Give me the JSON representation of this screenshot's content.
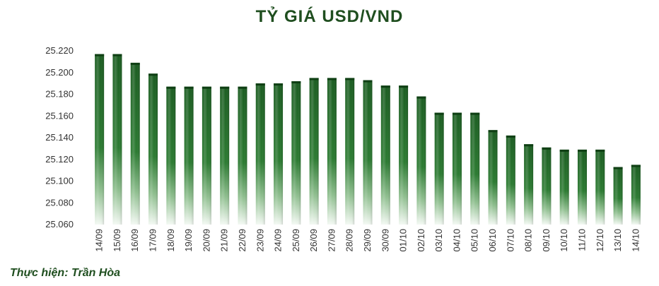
{
  "chart_data": {
    "type": "bar",
    "title": "TỶ GIÁ USD/VND",
    "categories": [
      "14/09",
      "15/09",
      "16/09",
      "17/09",
      "18/09",
      "19/09",
      "20/09",
      "21/09",
      "22/09",
      "23/09",
      "24/09",
      "25/09",
      "26/09",
      "27/09",
      "28/09",
      "29/09",
      "30/09",
      "01/10",
      "02/10",
      "03/10",
      "04/10",
      "05/10",
      "06/10",
      "07/10",
      "08/10",
      "09/10",
      "10/10",
      "11/10",
      "12/10",
      "13/10",
      "14/10"
    ],
    "values": [
      25217,
      25217,
      25209,
      25199,
      25187,
      25187,
      25187,
      25187,
      25187,
      25190,
      25190,
      25192,
      25195,
      25195,
      25195,
      25193,
      25188,
      25188,
      25178,
      25163,
      25163,
      25163,
      25147,
      25142,
      25134,
      25131,
      25129,
      25129,
      25129,
      25113,
      25115
    ],
    "y_tick_labels": [
      "25.060",
      "25.080",
      "25.100",
      "25.120",
      "25.140",
      "25.160",
      "25.180",
      "25.200",
      "25.220"
    ],
    "ylim": [
      25060,
      25220
    ],
    "grid": false,
    "bar_color": "#1f6b26"
  },
  "credit": "Thực hiện: Trần Hòa"
}
